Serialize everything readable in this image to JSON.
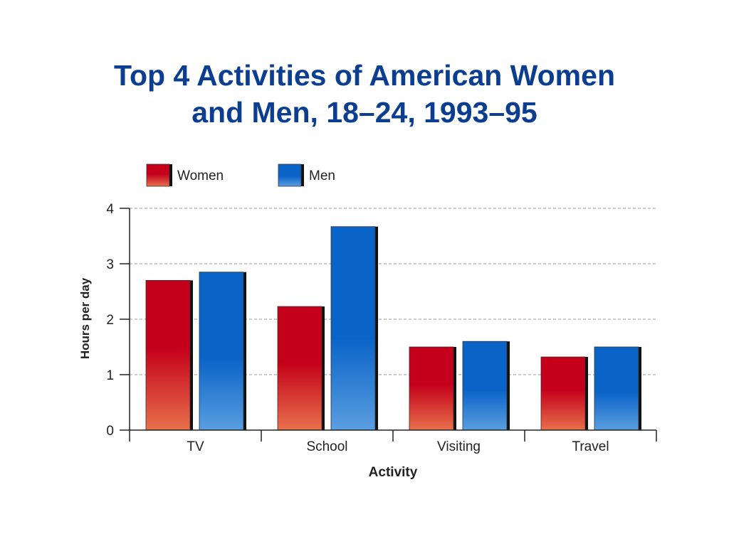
{
  "title_line1": "Top 4 Activities of American Women",
  "title_line2": "and Men, 18–24, 1993–95",
  "colors": {
    "title": "#0b3d91",
    "women_top": "#c4001a",
    "women_bottom": "#e8704c",
    "men_top": "#0a64c8",
    "men_bottom": "#5a9ee0"
  },
  "chart_data": {
    "type": "bar",
    "categories": [
      "TV",
      "School",
      "Visiting",
      "Travel"
    ],
    "series": [
      {
        "name": "Women",
        "values": [
          2.7,
          2.23,
          1.5,
          1.32
        ]
      },
      {
        "name": "Men",
        "values": [
          2.85,
          3.67,
          1.6,
          1.5
        ]
      }
    ],
    "xlabel": "Activity",
    "ylabel": "Hours per day",
    "ylim": [
      0,
      4
    ],
    "yticks": [
      "0",
      "1",
      "2",
      "3",
      "4"
    ],
    "grid": true,
    "legend_position": "top-left"
  }
}
